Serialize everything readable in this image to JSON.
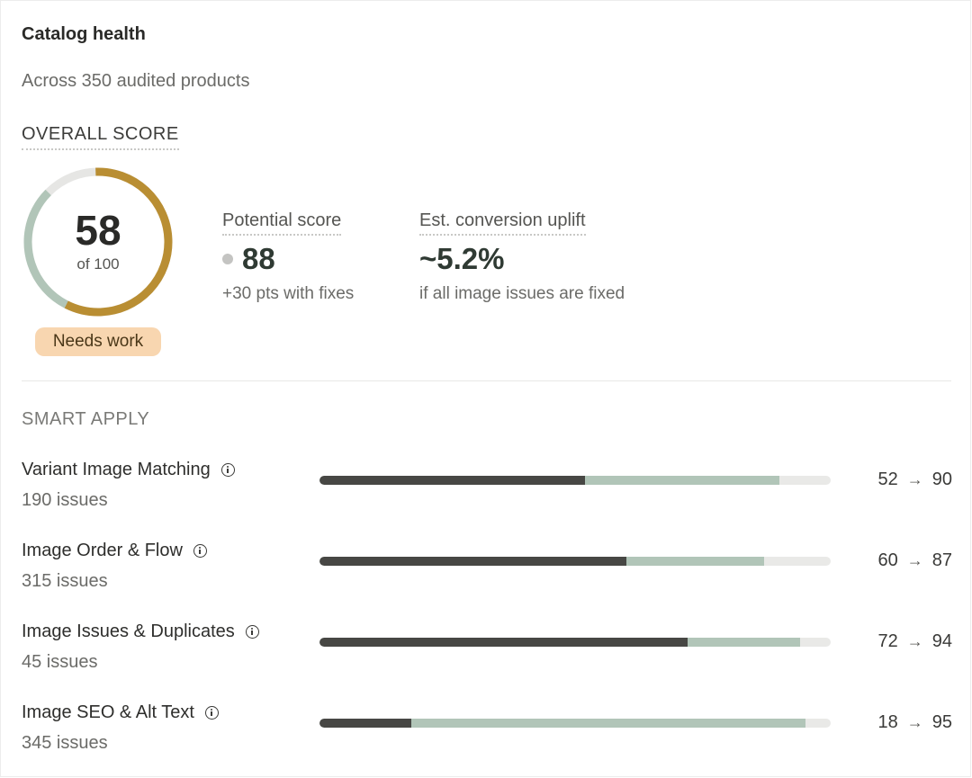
{
  "header": {
    "title": "Catalog health",
    "subtitle": "Across 350 audited products"
  },
  "overall": {
    "section_label": "OVERALL SCORE",
    "score": 58,
    "score_text": "58",
    "out_of_text": "of 100",
    "max": 100,
    "status_badge": "Needs work",
    "colors": {
      "score_arc": "#b98e33",
      "potential_arc": "#b1c5b8",
      "track": "#e6e6e4",
      "badge_bg": "#f8d6b0"
    }
  },
  "stats": {
    "potential": {
      "label": "Potential score",
      "value": "88",
      "note": "+30 pts with fixes"
    },
    "uplift": {
      "label": "Est. conversion uplift",
      "value": "~5.2%",
      "note": "if all image issues are fixed"
    }
  },
  "smart_apply": {
    "section_label": "SMART APPLY",
    "arrow": "→",
    "colors": {
      "current": "#474744",
      "potential": "#b1c5b8",
      "track": "#e9e9e7"
    },
    "rows": [
      {
        "name": "Variant Image Matching",
        "issues": "190 issues",
        "current": 52,
        "potential": 90
      },
      {
        "name": "Image Order & Flow",
        "issues": "315 issues",
        "current": 60,
        "potential": 87
      },
      {
        "name": "Image Issues & Duplicates",
        "issues": "45 issues",
        "current": 72,
        "potential": 94
      },
      {
        "name": "Image SEO & Alt Text",
        "issues": "345 issues",
        "current": 18,
        "potential": 95
      }
    ]
  }
}
